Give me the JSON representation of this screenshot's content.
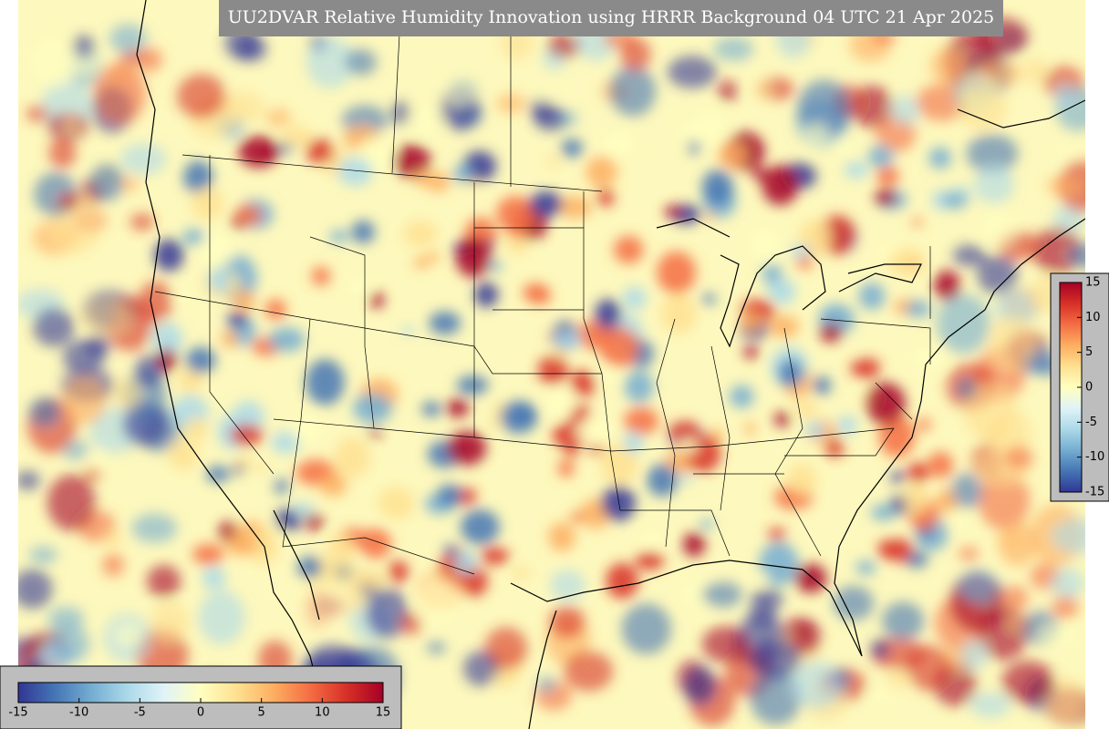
{
  "header": {
    "title": "UU2DVAR Relative Humidity Innovation using HRRR Background 04 UTC 21 Apr 2025"
  },
  "colorscale": {
    "colors": [
      "#313695",
      "#4575b4",
      "#74add1",
      "#abd9e9",
      "#e0f3f8",
      "#ffffbf",
      "#fee090",
      "#fdae61",
      "#f46d43",
      "#d73027",
      "#a50026"
    ],
    "lim": [
      -15,
      15
    ],
    "ticks": [
      -15,
      -10,
      -5,
      0,
      5,
      10,
      15
    ]
  },
  "colorbars": [
    {
      "orientation": "vertical"
    },
    {
      "orientation": "horizontal"
    }
  ]
}
